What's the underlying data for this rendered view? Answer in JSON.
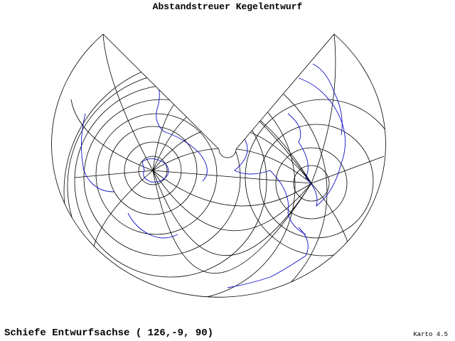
{
  "header": {
    "title": "Abstandstreuer Kegelentwurf"
  },
  "footer": {
    "projection": "Schiefe Entwurfsachse ( 126,-9, 90)",
    "software": "Karto 4.5"
  }
}
